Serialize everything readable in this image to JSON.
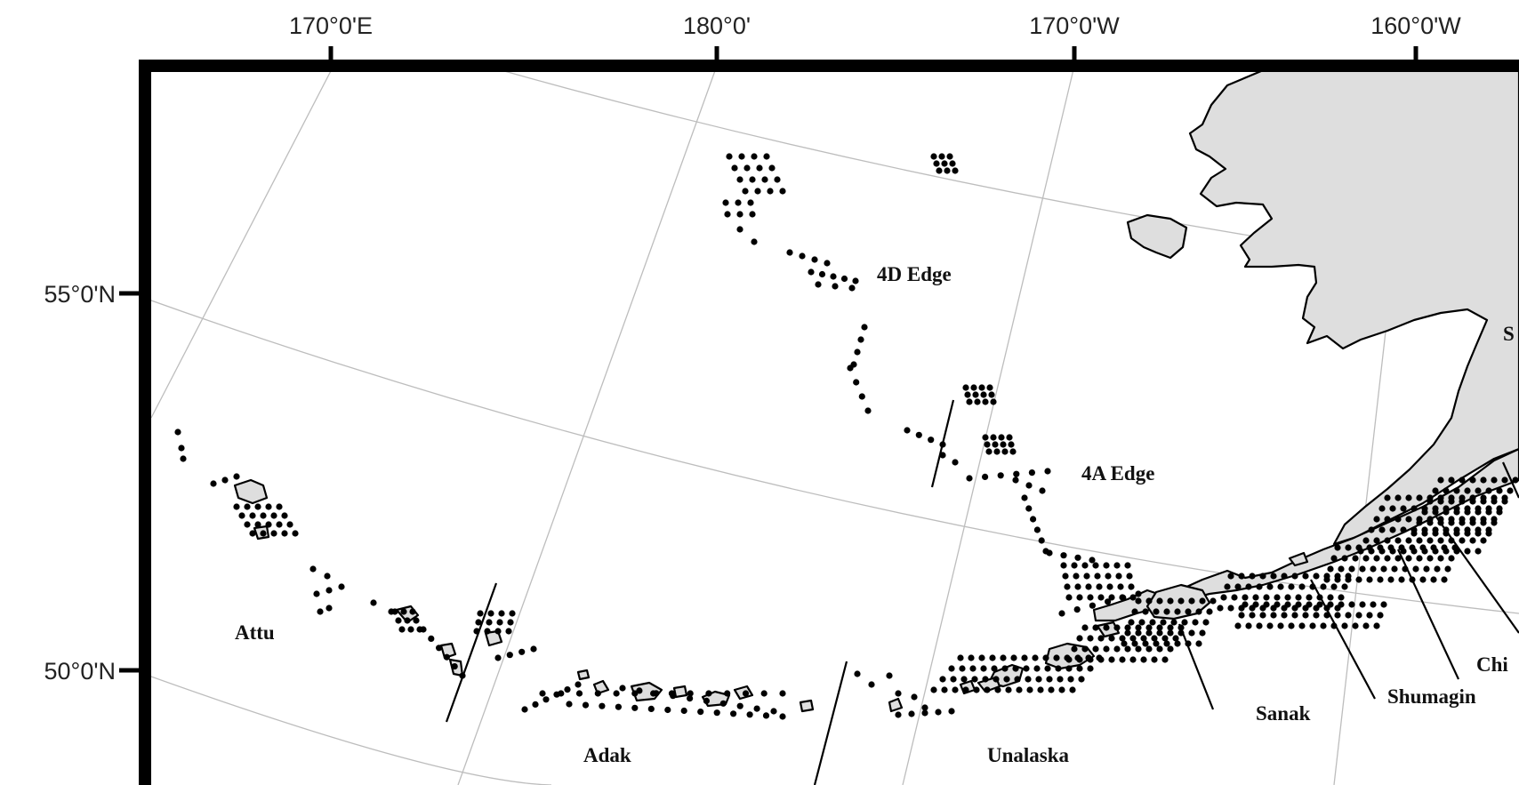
{
  "longitude_labels": [
    "170°0'E",
    "180°0'",
    "170°0'W",
    "160°0'W"
  ],
  "latitude_labels": [
    "55°0'N",
    "50°0'N"
  ],
  "region_labels": {
    "edge_4d": "4D Edge",
    "edge_4a": "4A Edge",
    "attu": "Attu",
    "adak": "Adak",
    "unalaska": "Unalaska",
    "sanak": "Sanak",
    "shumagin": "Shumagin",
    "chi_partial": "Chi",
    "s_partial": "S"
  },
  "colors": {
    "land": "#dedede",
    "station": "#000000",
    "graticule": "#bdbdbd",
    "frame": "#000000"
  }
}
